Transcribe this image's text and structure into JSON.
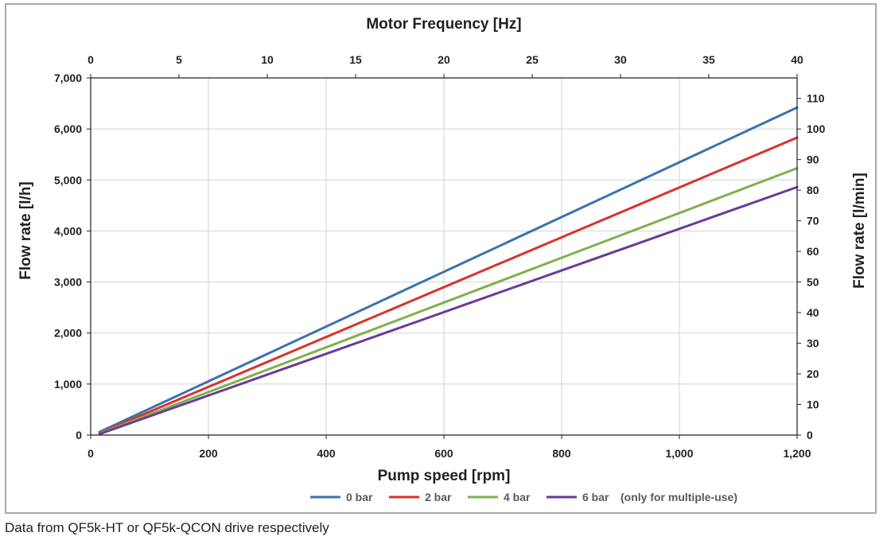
{
  "chart_data": {
    "type": "line",
    "title": "",
    "xlabel": "Pump speed [rpm]",
    "ylabel": "Flow rate [l/h]",
    "x2label": "Motor Frequency [Hz]",
    "y2label": "Flow rate [l/min]",
    "xlim": [
      0,
      1200
    ],
    "ylim": [
      0,
      7000
    ],
    "x2lim": [
      0,
      40
    ],
    "y2lim": [
      0,
      116.67
    ],
    "x_ticks": [
      0,
      200,
      400,
      600,
      800,
      1000,
      1200
    ],
    "x_tick_labels": [
      "0",
      "200",
      "400",
      "600",
      "800",
      "1,000",
      "1,200"
    ],
    "y_ticks": [
      0,
      1000,
      2000,
      3000,
      4000,
      5000,
      6000,
      7000
    ],
    "y_tick_labels": [
      "0",
      "1,000",
      "2,000",
      "3,000",
      "4,000",
      "5,000",
      "6,000",
      "7,000"
    ],
    "x2_ticks": [
      0,
      5,
      10,
      15,
      20,
      25,
      30,
      35,
      40
    ],
    "x2_tick_labels": [
      "0",
      "5",
      "10",
      "15",
      "20",
      "25",
      "30",
      "35",
      "40"
    ],
    "y2_ticks": [
      0,
      10,
      20,
      30,
      40,
      50,
      60,
      70,
      80,
      90,
      100,
      110
    ],
    "y2_tick_labels": [
      "0",
      "10",
      "20",
      "30",
      "40",
      "50",
      "60",
      "70",
      "80",
      "90",
      "100",
      "110"
    ],
    "grid": true,
    "legend_position": "bottom",
    "series": [
      {
        "name": "0 bar",
        "color": "#3a72b0",
        "x": [
          15,
          1200
        ],
        "y": [
          60,
          6420
        ]
      },
      {
        "name": "2 bar",
        "color": "#d9322c",
        "x": [
          15,
          1200
        ],
        "y": [
          40,
          5830
        ]
      },
      {
        "name": "4 bar",
        "color": "#7fb04c",
        "x": [
          15,
          1200
        ],
        "y": [
          30,
          5230
        ]
      },
      {
        "name": "6 bar",
        "color": "#6a3a97",
        "x": [
          15,
          1200
        ],
        "y": [
          20,
          4860
        ]
      }
    ],
    "legend_note": "(only for multiple-use)"
  },
  "footnote": "Data from QF5k-HT or QF5k-QCON drive respectively"
}
